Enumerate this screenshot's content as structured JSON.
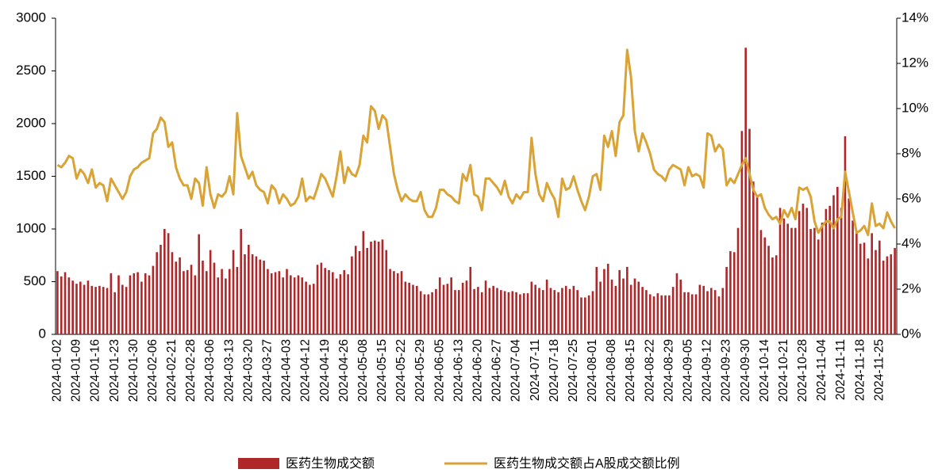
{
  "chart_data": {
    "type": "bar-line",
    "categories": [
      "2024-01-02",
      null,
      null,
      null,
      null,
      "2024-01-09",
      null,
      null,
      null,
      null,
      "2024-01-16",
      null,
      null,
      null,
      null,
      "2024-01-23",
      null,
      null,
      null,
      null,
      "2024-01-30",
      null,
      null,
      null,
      null,
      "2024-02-06",
      null,
      null,
      null,
      null,
      "2024-02-21",
      null,
      null,
      null,
      null,
      "2024-02-28",
      null,
      null,
      null,
      null,
      "2024-03-06",
      null,
      null,
      null,
      null,
      "2024-03-13",
      null,
      null,
      null,
      null,
      "2024-03-20",
      null,
      null,
      null,
      null,
      "2024-03-27",
      null,
      null,
      null,
      null,
      "2024-04-03",
      null,
      null,
      null,
      null,
      "2024-04-12",
      null,
      null,
      null,
      null,
      "2024-04-19",
      null,
      null,
      null,
      null,
      "2024-04-26",
      null,
      null,
      null,
      null,
      "2024-05-08",
      null,
      null,
      null,
      null,
      "2024-05-15",
      null,
      null,
      null,
      null,
      "2024-05-22",
      null,
      null,
      null,
      null,
      "2024-05-29",
      null,
      null,
      null,
      null,
      "2024-06-05",
      null,
      null,
      null,
      null,
      "2024-06-13",
      null,
      null,
      null,
      null,
      "2024-06-20",
      null,
      null,
      null,
      null,
      "2024-06-27",
      null,
      null,
      null,
      null,
      "2024-07-04",
      null,
      null,
      null,
      null,
      "2024-07-11",
      null,
      null,
      null,
      null,
      "2024-07-18",
      null,
      null,
      null,
      null,
      "2024-07-25",
      null,
      null,
      null,
      null,
      "2024-08-01",
      null,
      null,
      null,
      null,
      "2024-08-08",
      null,
      null,
      null,
      null,
      "2024-08-15",
      null,
      null,
      null,
      null,
      "2024-08-22",
      null,
      null,
      null,
      null,
      "2024-08-29",
      null,
      null,
      null,
      null,
      "2024-09-05",
      null,
      null,
      null,
      null,
      "2024-09-12",
      null,
      null,
      null,
      null,
      "2024-09-23",
      null,
      null,
      null,
      null,
      "2024-09-30",
      null,
      null,
      null,
      null,
      "2024-10-14",
      null,
      null,
      null,
      null,
      "2024-10-21",
      null,
      null,
      null,
      null,
      "2024-10-28",
      null,
      null,
      null,
      null,
      "2024-11-04",
      null,
      null,
      null,
      null,
      "2024-11-11",
      null,
      null,
      null,
      null,
      "2024-11-18",
      null,
      null,
      null,
      null,
      "2024-11-25",
      null,
      null,
      null,
      null
    ],
    "series": [
      {
        "name": "医药生物成交额",
        "color": "#b0272a",
        "values": [
          600,
          550,
          590,
          540,
          510,
          480,
          500,
          470,
          510,
          460,
          450,
          460,
          450,
          440,
          580,
          400,
          560,
          470,
          450,
          560,
          580,
          590,
          500,
          580,
          560,
          650,
          780,
          850,
          1000,
          960,
          780,
          690,
          730,
          600,
          610,
          660,
          560,
          950,
          700,
          600,
          800,
          680,
          540,
          620,
          530,
          620,
          800,
          640,
          1000,
          760,
          850,
          760,
          740,
          710,
          700,
          620,
          580,
          590,
          600,
          540,
          620,
          560,
          540,
          560,
          540,
          500,
          470,
          480,
          660,
          680,
          630,
          610,
          590,
          530,
          570,
          610,
          570,
          740,
          840,
          790,
          980,
          820,
          880,
          890,
          880,
          900,
          800,
          620,
          600,
          580,
          600,
          500,
          490,
          470,
          460,
          410,
          380,
          380,
          400,
          430,
          540,
          470,
          480,
          540,
          420,
          420,
          490,
          510,
          640,
          430,
          450,
          400,
          510,
          440,
          460,
          440,
          420,
          410,
          400,
          410,
          400,
          380,
          390,
          390,
          500,
          470,
          440,
          420,
          520,
          440,
          420,
          400,
          440,
          460,
          430,
          460,
          420,
          350,
          350,
          370,
          410,
          640,
          500,
          620,
          670,
          520,
          460,
          610,
          530,
          640,
          470,
          530,
          500,
          450,
          420,
          380,
          360,
          390,
          370,
          370,
          370,
          450,
          580,
          520,
          400,
          400,
          380,
          380,
          470,
          460,
          410,
          440,
          420,
          360,
          440,
          640,
          790,
          780,
          1010,
          1930,
          2720,
          1950,
          1450,
          1300,
          990,
          920,
          840,
          730,
          750,
          1200,
          1100,
          1050,
          1010,
          1010,
          1170,
          1240,
          1200,
          1000,
          1010,
          900,
          1060,
          1190,
          1220,
          1320,
          1400,
          1200,
          1880,
          1290,
          1080,
          980,
          860,
          870,
          720,
          960,
          800,
          890,
          700,
          740,
          760,
          820
        ]
      },
      {
        "name": "医药生物成交额占A股成交额比例",
        "color": "#d9a335",
        "axis": "y2",
        "values": [
          7.5,
          7.4,
          7.6,
          7.9,
          7.8,
          6.9,
          7.3,
          7.1,
          6.7,
          7.3,
          6.5,
          6.7,
          6.6,
          5.9,
          6.9,
          6.6,
          6.3,
          6.0,
          6.3,
          7.0,
          7.3,
          7.4,
          7.6,
          7.7,
          7.8,
          8.9,
          9.1,
          9.6,
          9.4,
          8.3,
          8.5,
          7.4,
          6.9,
          6.6,
          6.6,
          6.0,
          6.9,
          6.7,
          5.7,
          7.4,
          6.2,
          5.6,
          6.2,
          6.1,
          6.3,
          7.0,
          6.2,
          9.8,
          7.9,
          7.4,
          6.9,
          7.2,
          6.6,
          6.4,
          6.3,
          5.8,
          6.6,
          6.4,
          5.8,
          6.2,
          6.0,
          5.7,
          5.8,
          6.1,
          6.9,
          5.9,
          6.1,
          6.0,
          6.5,
          7.1,
          6.9,
          6.5,
          6.1,
          7.0,
          8.1,
          6.7,
          7.4,
          7.1,
          7.0,
          7.5,
          8.8,
          8.5,
          10.1,
          9.9,
          9.1,
          9.7,
          9.5,
          8.3,
          7.1,
          6.4,
          5.9,
          6.2,
          6.0,
          5.9,
          5.9,
          6.3,
          5.5,
          5.2,
          5.2,
          5.6,
          6.4,
          6.4,
          6.2,
          6.1,
          5.9,
          5.8,
          7.1,
          6.8,
          7.5,
          6.2,
          6.1,
          5.5,
          6.9,
          6.9,
          6.7,
          6.5,
          6.2,
          6.8,
          6.1,
          5.8,
          6.2,
          6.0,
          6.3,
          6.3,
          8.7,
          7.1,
          6.2,
          5.9,
          6.7,
          6.3,
          6.0,
          5.2,
          6.9,
          6.4,
          6.5,
          7.0,
          6.4,
          5.9,
          5.5,
          6.1,
          7.0,
          7.1,
          6.4,
          8.8,
          8.3,
          9.0,
          7.9,
          9.4,
          9.7,
          12.6,
          11.4,
          9.0,
          8.1,
          8.9,
          8.5,
          8.0,
          7.3,
          7.1,
          7.0,
          6.8,
          7.3,
          7.5,
          7.4,
          7.3,
          6.6,
          7.4,
          7.0,
          7.1,
          7.0,
          6.5,
          8.9,
          8.8,
          8.1,
          8.4,
          8.2,
          6.6,
          6.9,
          6.7,
          7.1,
          7.5,
          7.8,
          7.1,
          6.4,
          6.1,
          6.2,
          5.6,
          5.3,
          5.1,
          5.2,
          4.9,
          5.5,
          5.2,
          5.6,
          5.1,
          6.5,
          6.4,
          6.5,
          6.1,
          5.0,
          4.5,
          4.8,
          5.0,
          5.0,
          4.7,
          5.1,
          5.2,
          7.2,
          6.3,
          5.4,
          4.5,
          4.6,
          4.8,
          4.4,
          5.8,
          4.8,
          4.9,
          4.7,
          5.4,
          5.0,
          4.7
        ]
      }
    ],
    "ylim": [
      0,
      3000
    ],
    "yticks": [
      0,
      500,
      1000,
      1500,
      2000,
      2500,
      3000
    ],
    "y2lim": [
      0,
      14
    ],
    "y2ticks": [
      {
        "value": 0,
        "label": "0%"
      },
      {
        "value": 2,
        "label": "2%"
      },
      {
        "value": 4,
        "label": "4%"
      },
      {
        "value": 6,
        "label": "6%"
      },
      {
        "value": 8,
        "label": "8%"
      },
      {
        "value": 10,
        "label": "10%"
      },
      {
        "value": 12,
        "label": "12%"
      },
      {
        "value": 14,
        "label": "14%"
      }
    ],
    "legend": "bottom"
  }
}
